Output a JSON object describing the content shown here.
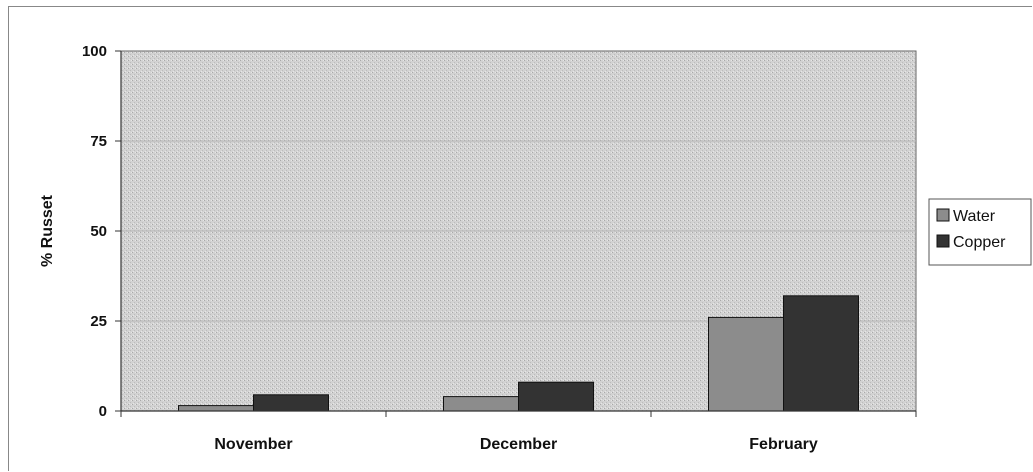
{
  "chart_data": {
    "type": "bar",
    "title": "",
    "xlabel": "",
    "ylabel": "% Russet",
    "ylim": [
      0,
      100
    ],
    "yticks": [
      "0",
      "25",
      "50",
      "75",
      "100"
    ],
    "categories": [
      "November",
      "December",
      "February"
    ],
    "series": [
      {
        "name": "Water",
        "values": [
          1.5,
          4,
          26
        ],
        "color": "#8c8c8c"
      },
      {
        "name": "Copper",
        "values": [
          4.5,
          8,
          32
        ],
        "color": "#333333"
      }
    ],
    "grid": true,
    "legend": "right"
  }
}
